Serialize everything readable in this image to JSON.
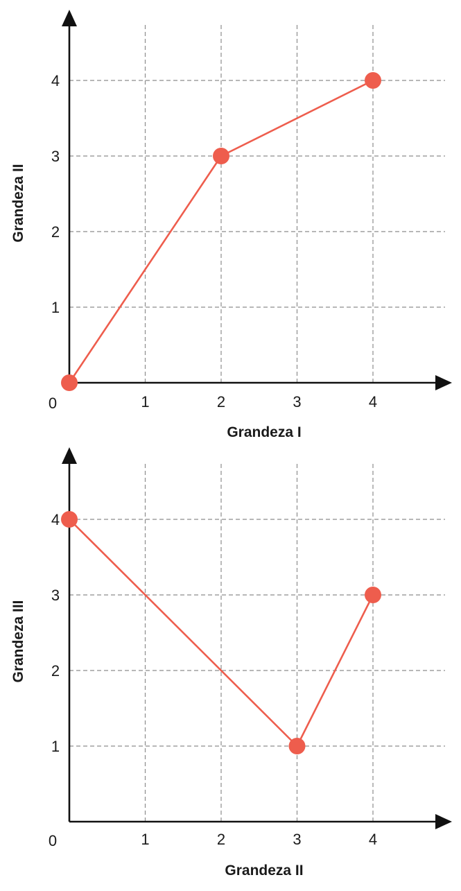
{
  "chart_data": [
    {
      "type": "line",
      "xlabel": "Grandeza I",
      "ylabel": "Grandeza II",
      "origin_label": "0",
      "x_ticks": [
        "1",
        "2",
        "3",
        "4"
      ],
      "y_ticks": [
        "1",
        "2",
        "3",
        "4"
      ],
      "xlim": [
        0,
        5
      ],
      "ylim": [
        0,
        4.9
      ],
      "grid": true,
      "series": [
        {
          "x": [
            0,
            2,
            4
          ],
          "y": [
            0,
            3,
            4
          ]
        }
      ],
      "color": "#ee5d4d"
    },
    {
      "type": "line",
      "xlabel": "Grandeza II",
      "ylabel": "Grandeza III",
      "origin_label": "0",
      "x_ticks": [
        "1",
        "2",
        "3",
        "4"
      ],
      "y_ticks": [
        "1",
        "2",
        "3",
        "4"
      ],
      "xlim": [
        0,
        5
      ],
      "ylim": [
        0,
        4.9
      ],
      "grid": true,
      "series": [
        {
          "x": [
            0,
            3,
            4
          ],
          "y": [
            4,
            1,
            3
          ]
        }
      ],
      "color": "#ee5d4d"
    }
  ]
}
